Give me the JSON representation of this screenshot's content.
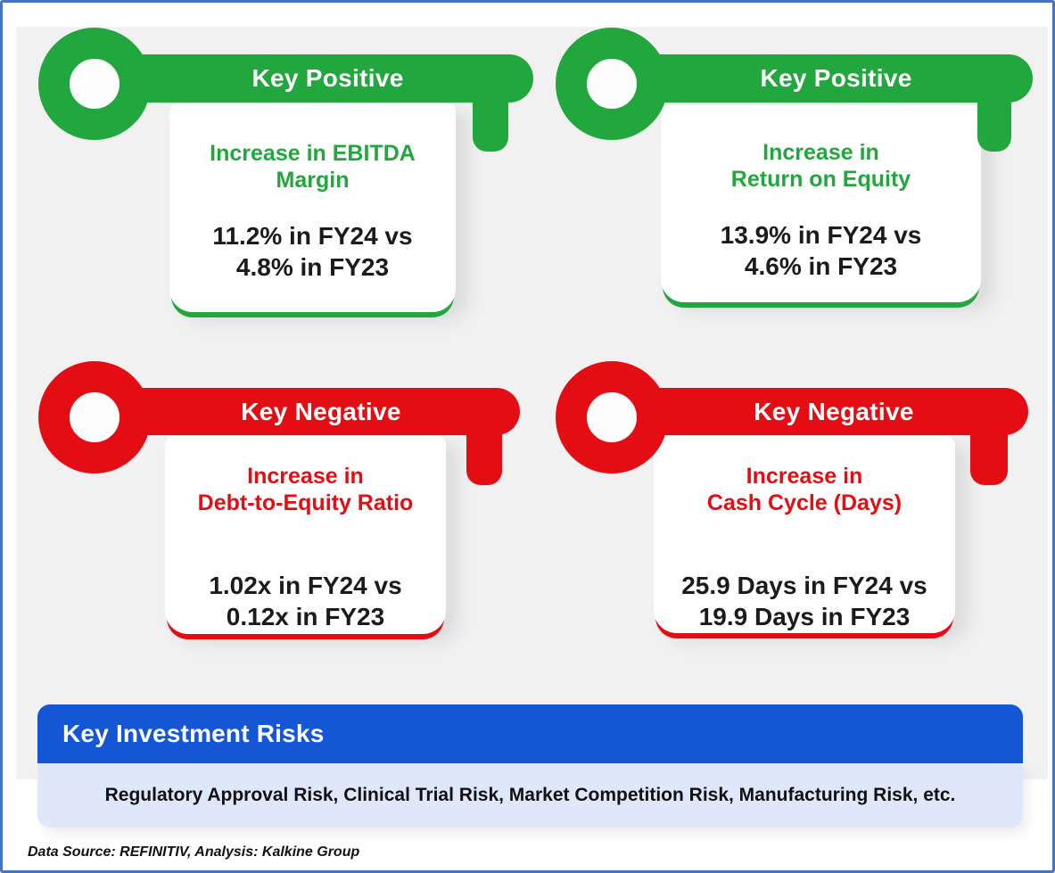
{
  "cards": [
    {
      "id": "top-left",
      "sentiment": "positive",
      "header": "Key Positive",
      "title_lines": [
        "Increase in EBITDA",
        "Margin"
      ],
      "value_lines": [
        "11.2% in FY24 vs",
        "4.8% in FY23"
      ],
      "metric": "EBITDA Margin",
      "fy24": "11.2%",
      "fy23": "4.8%"
    },
    {
      "id": "top-right",
      "sentiment": "positive",
      "header": "Key Positive",
      "title_lines": [
        "Increase in",
        "Return on Equity"
      ],
      "value_lines": [
        "13.9% in FY24 vs",
        "4.6% in FY23"
      ],
      "metric": "Return on Equity",
      "fy24": "13.9%",
      "fy23": "4.6%"
    },
    {
      "id": "bottom-left",
      "sentiment": "negative",
      "header": "Key Negative",
      "title_lines": [
        "Increase in",
        "Debt-to-Equity Ratio"
      ],
      "value_lines": [
        "1.02x in FY24 vs",
        "0.12x in FY23"
      ],
      "metric": "Debt-to-Equity Ratio",
      "fy24": "1.02x",
      "fy23": "0.12x"
    },
    {
      "id": "bottom-right",
      "sentiment": "negative",
      "header": "Key Negative",
      "title_lines": [
        "Increase in",
        "Cash Cycle (Days)"
      ],
      "value_lines": [
        "25.9 Days in FY24 vs",
        "19.9 Days in FY23"
      ],
      "metric": "Cash Cycle (Days)",
      "fy24": "25.9 Days",
      "fy23": "19.9 Days"
    }
  ],
  "risks": {
    "header": "Key Investment Risks",
    "body": "Regulatory Approval Risk, Clinical Trial Risk, Market Competition Risk, Manufacturing Risk, etc."
  },
  "footer": {
    "text": "Data Source: REFINITIV, Analysis: Kalkine Group"
  },
  "colors": {
    "positive_green": "#21a73d",
    "negative_red": "#e40d13",
    "risks_header_blue": "#1556d4",
    "risks_body_light_blue": "#dfe7fb",
    "panel_gray": "#f1f1f2",
    "outer_border_blue": "#4673c0",
    "value_text": "#1b1b1b"
  }
}
